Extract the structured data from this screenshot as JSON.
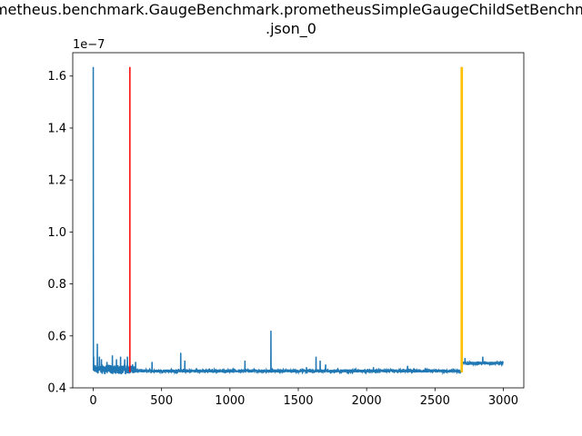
{
  "chart_data": {
    "type": "line",
    "title_line1": "prometheus.benchmark.GaugeBenchmark.prometheusSimpleGaugeChildSetBenchmark",
    "title_line2": ".json_0",
    "xlabel": "",
    "ylabel": "",
    "xlim": [
      -150,
      3150
    ],
    "ylim": [
      0.4,
      1.69
    ],
    "y_offset_label": "1e−7",
    "x_ticks": [
      0,
      500,
      1000,
      1500,
      2000,
      2500,
      3000
    ],
    "x_tick_labels": [
      "0",
      "500",
      "1000",
      "1500",
      "2000",
      "2500",
      "3000"
    ],
    "y_ticks": [
      0.4,
      0.6,
      0.8,
      1.0,
      1.2,
      1.4,
      1.6
    ],
    "y_tick_labels": [
      "0.4",
      "0.6",
      "0.8",
      "1.0",
      "1.2",
      "1.4",
      "1.6"
    ],
    "grid": false,
    "series": [
      {
        "color": "#1f77b4",
        "n_points": 3000,
        "baseline_before_2700": 0.465,
        "baseline_after_2700": 0.495,
        "spikes": [
          {
            "x": 0,
            "y": 1.635
          },
          {
            "x": 3,
            "y": 0.52
          },
          {
            "x": 30,
            "y": 0.57
          },
          {
            "x": 45,
            "y": 0.52
          },
          {
            "x": 60,
            "y": 0.51
          },
          {
            "x": 100,
            "y": 0.5
          },
          {
            "x": 140,
            "y": 0.525
          },
          {
            "x": 170,
            "y": 0.51
          },
          {
            "x": 200,
            "y": 0.52
          },
          {
            "x": 230,
            "y": 0.51
          },
          {
            "x": 250,
            "y": 0.52
          },
          {
            "x": 310,
            "y": 0.5
          },
          {
            "x": 430,
            "y": 0.5
          },
          {
            "x": 640,
            "y": 0.535
          },
          {
            "x": 670,
            "y": 0.505
          },
          {
            "x": 1110,
            "y": 0.505
          },
          {
            "x": 1300,
            "y": 0.62
          },
          {
            "x": 1560,
            "y": 0.48
          },
          {
            "x": 1630,
            "y": 0.52
          },
          {
            "x": 1660,
            "y": 0.505
          },
          {
            "x": 1700,
            "y": 0.49
          },
          {
            "x": 2050,
            "y": 0.48
          },
          {
            "x": 2300,
            "y": 0.485
          },
          {
            "x": 2720,
            "y": 0.515
          },
          {
            "x": 2850,
            "y": 0.52
          }
        ]
      }
    ],
    "vlines": [
      {
        "x": 268,
        "color": "#ff0000",
        "ymin": 0.46,
        "ymax": 1.635
      },
      {
        "x": 2692,
        "color": "#ffbf00",
        "ymin": 0.46,
        "ymax": 1.635
      },
      {
        "x": 2700,
        "color": "#ffbf00",
        "ymin": 0.46,
        "ymax": 1.635
      }
    ]
  }
}
